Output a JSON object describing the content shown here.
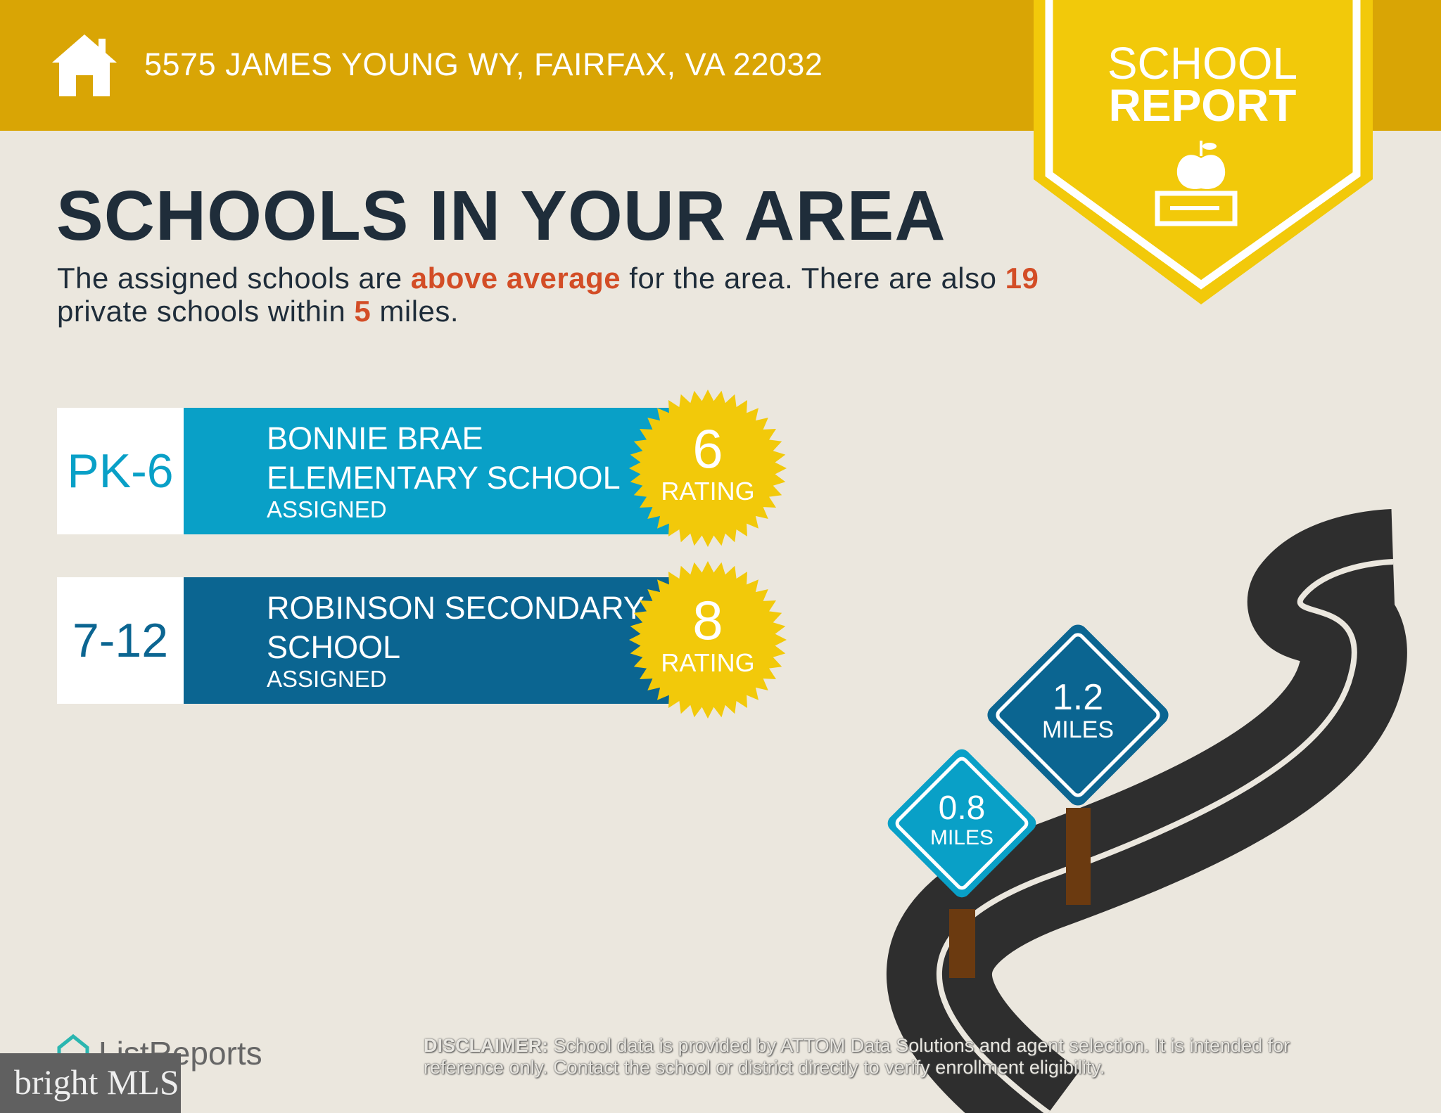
{
  "header": {
    "address": "5575 JAMES YOUNG WY, FAIRFAX, VA 22032",
    "icon": "house-icon",
    "color": "#d9a505"
  },
  "badge": {
    "line1": "SCHOOL",
    "line2": "REPORT",
    "icon": "apple-on-book-icon",
    "color": "#f2c90a"
  },
  "main": {
    "title": "SCHOOLS IN YOUR AREA",
    "intro": {
      "p1": "The assigned schools are ",
      "highlight1": "above average",
      "p2": " for the area. There are also ",
      "count": "19",
      "p3": " private schools within ",
      "miles": "5",
      "p4": " miles."
    },
    "schools": [
      {
        "grades": "PK-6",
        "name": "BONNIE BRAE ELEMENTARY SCHOOL",
        "status": "ASSIGNED",
        "rating": "6",
        "rating_label": "RATING",
        "color": "#09a0c7"
      },
      {
        "grades": "7-12",
        "name": "ROBINSON SECONDARY SCHOOL",
        "status": "ASSIGNED",
        "rating": "8",
        "rating_label": "RATING",
        "color": "#0b6591"
      }
    ]
  },
  "signs": [
    {
      "value": "1.2",
      "unit": "MILES",
      "color": "#0b6591"
    },
    {
      "value": "0.8",
      "unit": "MILES",
      "color": "#09a0c7"
    }
  ],
  "footer": {
    "brand": "ListReports",
    "disclaimer_label": "DISCLAIMER:",
    "disclaimer": " School data is provided by ATTOM Data Solutions and agent selection. It is intended for reference only. Contact the school or district directly to verify enrollment eligibility.",
    "watermark": "bright MLS"
  }
}
